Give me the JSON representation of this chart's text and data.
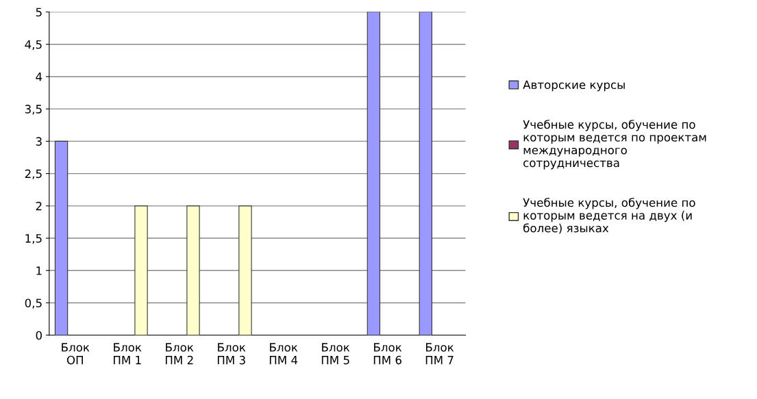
{
  "chart_data": {
    "type": "bar",
    "categories": [
      "Блок\nОП",
      "Блок\nПМ 1",
      "Блок\nПМ 2",
      "Блок\nПМ 3",
      "Блок\nПМ 4",
      "Блок\nПМ 5",
      "Блок\nПМ 6",
      "Блок\nПМ 7"
    ],
    "series": [
      {
        "name": "Авторские курсы",
        "color": "#9999ff",
        "values": [
          3,
          0,
          0,
          0,
          0,
          0,
          5,
          5
        ]
      },
      {
        "name": "Учебные курсы, обучение по\nкоторым ведется по проектам\nмеждународного\nсотрудничества",
        "color": "#993366",
        "values": [
          0,
          0,
          0,
          0,
          0,
          0,
          0,
          0
        ]
      },
      {
        "name": "Учебные курсы, обучение по\nкоторым ведется на двух (и\nболее) языках",
        "color": "#ffffcc",
        "values": [
          0,
          2,
          2,
          2,
          0,
          0,
          0,
          0
        ]
      }
    ],
    "ylim": [
      0,
      5
    ],
    "yticks": [
      0,
      {
        "value": 0.5,
        "label": "0,5"
      },
      1,
      {
        "value": 1.5,
        "label": "1,5"
      },
      2,
      {
        "value": 2.5,
        "label": "2,5"
      },
      3,
      {
        "value": 3.5,
        "label": "3,5"
      },
      4,
      {
        "value": 4.5,
        "label": "4,5"
      },
      5
    ],
    "grid": "y",
    "legend": "right"
  }
}
